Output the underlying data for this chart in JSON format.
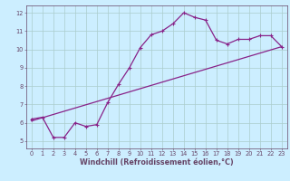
{
  "xlabel": "Windchill (Refroidissement éolien,°C)",
  "background_color": "#cceeff",
  "grid_color": "#aacccc",
  "line_color": "#882288",
  "spine_color": "#664466",
  "tick_color": "#664466",
  "xlim": [
    -0.5,
    23.5
  ],
  "ylim": [
    4.6,
    12.4
  ],
  "xticks": [
    0,
    1,
    2,
    3,
    4,
    5,
    6,
    7,
    8,
    9,
    10,
    11,
    12,
    13,
    14,
    15,
    16,
    17,
    18,
    19,
    20,
    21,
    22,
    23
  ],
  "yticks": [
    5,
    6,
    7,
    8,
    9,
    10,
    11,
    12
  ],
  "curve1_x": [
    0,
    1,
    2,
    3,
    4,
    5,
    6,
    7,
    8,
    9,
    10,
    11,
    12,
    13,
    14,
    15,
    16,
    17,
    18,
    19,
    20,
    21,
    22,
    23
  ],
  "curve1_y": [
    6.2,
    6.3,
    5.2,
    5.2,
    6.0,
    5.8,
    5.9,
    7.1,
    8.1,
    9.0,
    10.1,
    10.8,
    11.0,
    11.4,
    12.0,
    11.75,
    11.6,
    10.5,
    10.3,
    10.55,
    10.55,
    10.75,
    10.75,
    10.15
  ],
  "curve2_x": [
    0,
    23
  ],
  "curve2_y": [
    6.1,
    10.15
  ],
  "marker": "+",
  "markersize": 3.5,
  "markeredgewidth": 0.8,
  "linewidth": 0.9,
  "tick_fontsize": 4.8,
  "label_fontsize": 5.8,
  "label_fontweight": "bold"
}
